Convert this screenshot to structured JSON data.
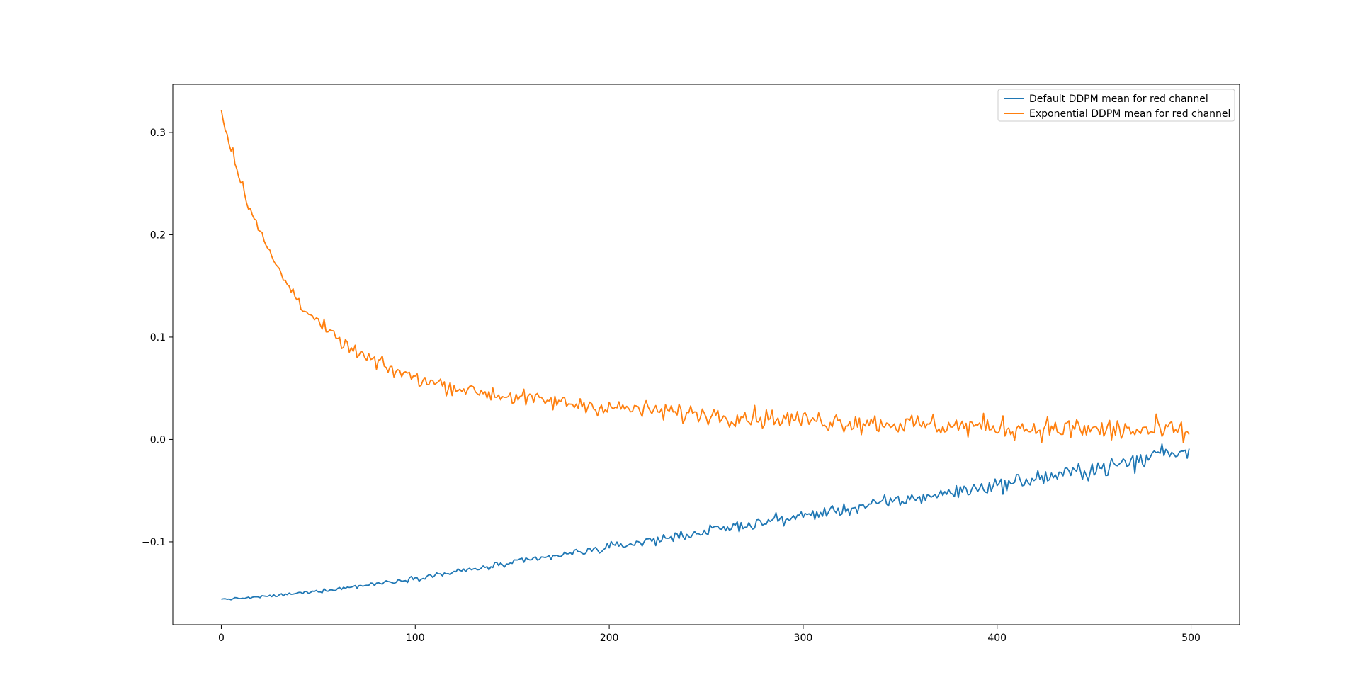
{
  "chart_data": {
    "type": "line",
    "title": "",
    "xlabel": "",
    "ylabel": "",
    "xlim": [
      -25,
      525
    ],
    "ylim": [
      -0.181,
      0.347
    ],
    "x_ticks": [
      0,
      100,
      200,
      300,
      400,
      500
    ],
    "x_tick_labels": [
      "0",
      "100",
      "200",
      "300",
      "400",
      "500"
    ],
    "y_ticks": [
      -0.1,
      0.0,
      0.1,
      0.2,
      0.3
    ],
    "y_tick_labels": [
      "−0.1",
      "0.0",
      "0.1",
      "0.2",
      "0.3"
    ],
    "grid": false,
    "legend_position": "upper right",
    "x": {
      "start": 0,
      "end": 499,
      "step": 1
    },
    "series": [
      {
        "name": "Default DDPM mean for red channel",
        "color": "#1f77b4",
        "model": "exp-rise",
        "start_value": -0.156,
        "end_value": -0.012,
        "growth_rate": 2.3,
        "noise_start": 0.0005,
        "noise_end": 0.0055
      },
      {
        "name": "Exponential DDPM mean for red channel",
        "color": "#ff7f0e",
        "model": "exp-decay",
        "start_value": 0.322,
        "asymptote": 0.0,
        "fast_amplitude": 0.24,
        "fast_decay": 32,
        "slow_amplitude": 0.08,
        "slow_decay": 210,
        "noise_start": 0.0035,
        "noise_end": 0.0075
      }
    ]
  }
}
